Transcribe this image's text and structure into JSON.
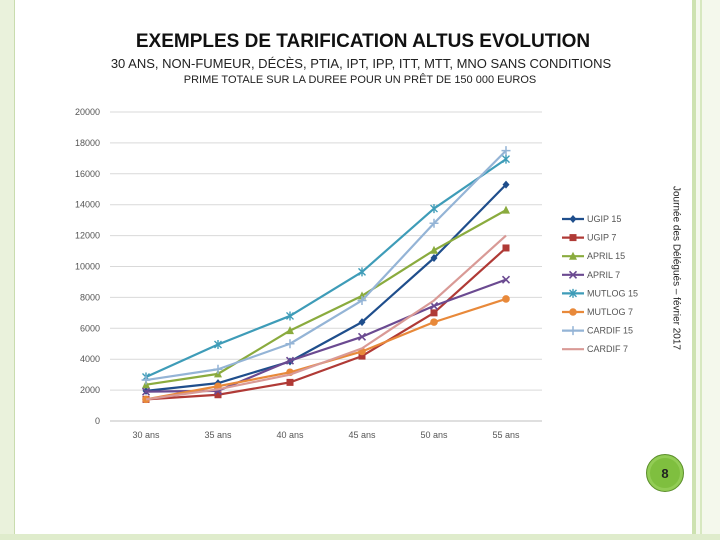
{
  "title": "EXEMPLES DE TARIFICATION ALTUS EVOLUTION",
  "subtitle": "30 ANS, NON-FUMEUR, DÉCÈS, PTIA, IPT, IPP, ITT, MTT, MNO SANS CONDITIONS",
  "subtitle2": "PRIME TOTALE SUR LA DUREE POUR UN PRÊT DE 150 000 EUROS",
  "side_text": "Journée des Délégués – février 2017",
  "page_number": "8",
  "chart_data": {
    "type": "line",
    "categories": [
      "30 ans",
      "35 ans",
      "40 ans",
      "45 ans",
      "50 ans",
      "55 ans"
    ],
    "ylim": [
      0,
      20000
    ],
    "yticks": [
      "0",
      "2000",
      "4000",
      "6000",
      "8000",
      "10000",
      "12000",
      "14000",
      "16000",
      "18000",
      "20000"
    ],
    "legend_position": "right",
    "grid": true,
    "series": [
      {
        "name": "UGIP 15",
        "color": "#1f4e8c",
        "marker": "diamond",
        "values": [
          1950,
          2450,
          3850,
          6400,
          10550,
          15300
        ]
      },
      {
        "name": "UGIP 7",
        "color": "#b03a36",
        "marker": "square",
        "values": [
          1400,
          1700,
          2500,
          4200,
          7000,
          11200
        ]
      },
      {
        "name": "APRIL 15",
        "color": "#8aab3e",
        "marker": "triangle",
        "values": [
          2350,
          3050,
          5850,
          8100,
          11050,
          13650
        ]
      },
      {
        "name": "APRIL 7",
        "color": "#6b4a91",
        "marker": "x",
        "values": [
          1900,
          1950,
          3900,
          5450,
          7450,
          9150
        ]
      },
      {
        "name": "MUTLOG 15",
        "color": "#3e9cb8",
        "marker": "star",
        "values": [
          2850,
          4950,
          6800,
          9650,
          13750,
          16950
        ]
      },
      {
        "name": "MUTLOG 7",
        "color": "#e8893a",
        "marker": "circle",
        "values": [
          1400,
          2250,
          3150,
          4500,
          6400,
          7900
        ]
      },
      {
        "name": "CARDIF 15",
        "color": "#94b4d6",
        "marker": "plus",
        "values": [
          2650,
          3350,
          5000,
          7800,
          12800,
          17500
        ]
      },
      {
        "name": "CARDIF 7",
        "color": "#d99a96",
        "marker": "none",
        "values": [
          1400,
          2050,
          3000,
          4700,
          7800,
          12000
        ]
      }
    ]
  }
}
